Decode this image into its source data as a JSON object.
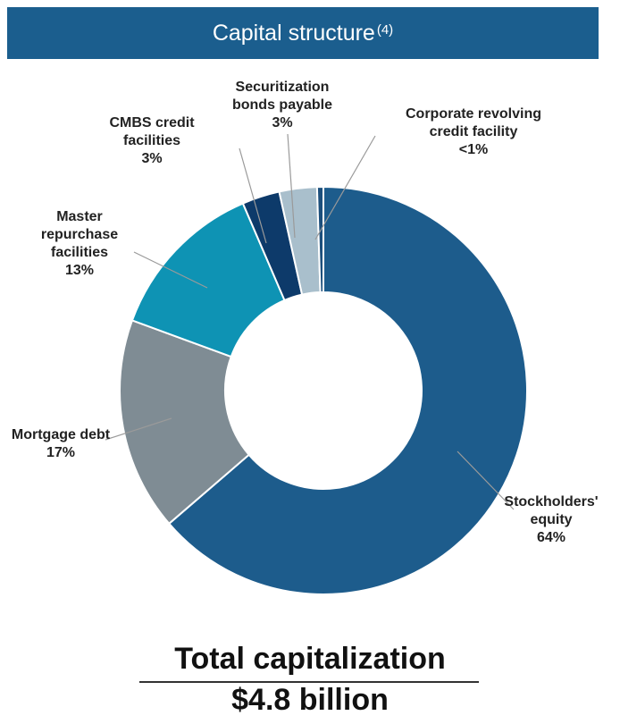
{
  "chart_data": {
    "type": "donut",
    "title": "Capital structure",
    "title_note": "(4)",
    "categories": [
      "Stockholders' equity",
      "Mortgage debt",
      "Master repurchase facilities",
      "CMBS credit facilities",
      "Securitization bonds payable",
      "Corporate revolving credit facility"
    ],
    "values": [
      64,
      17,
      13,
      3,
      3,
      0.5
    ],
    "value_labels": [
      "64%",
      "17%",
      "13%",
      "3%",
      "3%",
      "<1%"
    ],
    "colors": [
      "#1d5c8c",
      "#7f8c94",
      "#0e93b4",
      "#0d3a6a",
      "#a9bfcc",
      "#1c4f7c"
    ],
    "total_label": "Total capitalization",
    "total_value": "$4.8 billion"
  }
}
